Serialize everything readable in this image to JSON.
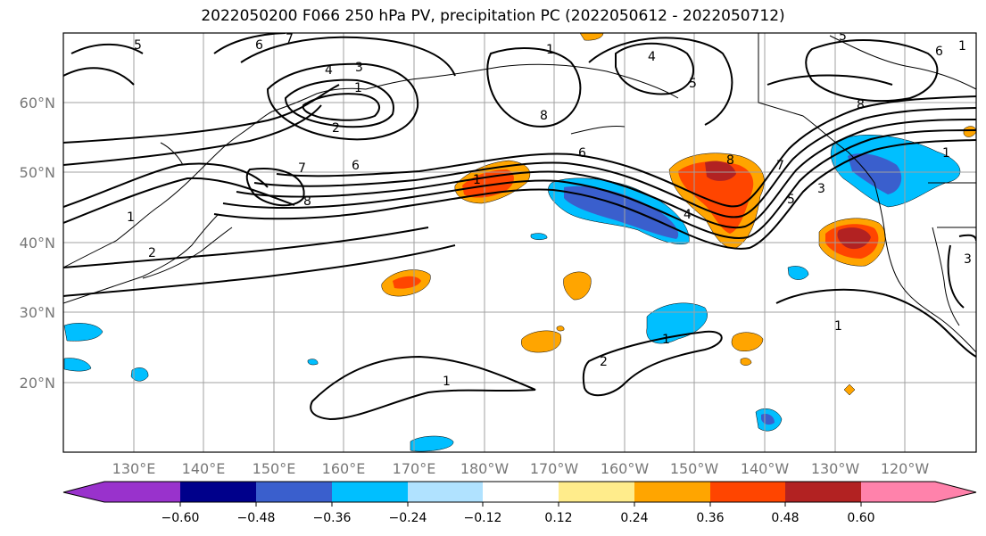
{
  "title": "2022050200 F066 250 hPa PV, precipitation PC (2022050612 - 2022050712)",
  "map": {
    "lat_labels": [
      "60°N",
      "50°N",
      "40°N",
      "30°N",
      "20°N"
    ],
    "lon_labels": [
      "130°E",
      "140°E",
      "150°E",
      "160°E",
      "170°E",
      "180°W",
      "170°W",
      "160°W",
      "150°W",
      "140°W",
      "130°W",
      "120°W"
    ],
    "contour_labels": [
      "5",
      "6",
      "7",
      "4",
      "3",
      "1",
      "2",
      "6",
      "7",
      "8",
      "1",
      "2",
      "1",
      "4",
      "5",
      "8",
      "7",
      "1",
      "5",
      "3",
      "1",
      "6",
      "8",
      "1",
      "1",
      "3",
      "6",
      "5",
      "1",
      "1",
      "2",
      "4",
      "8"
    ]
  },
  "colorbar": {
    "ticks": [
      "−0.60",
      "−0.48",
      "−0.36",
      "−0.24",
      "−0.12",
      "0.12",
      "0.24",
      "0.36",
      "0.48",
      "0.60"
    ],
    "colors": [
      "#9932cc",
      "#00008b",
      "#3a5fcd",
      "#00bfff",
      "#b0e2ff",
      "#ffffff",
      "#ffec8b",
      "#ffa500",
      "#ff4500",
      "#b22222",
      "#ff82ab"
    ]
  }
}
